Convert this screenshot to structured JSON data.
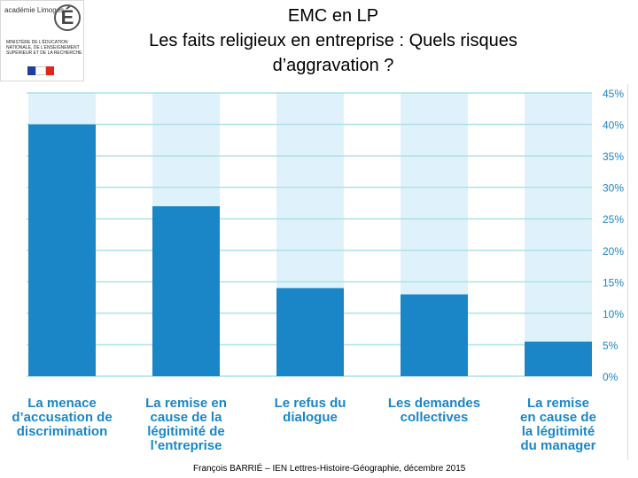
{
  "header": {
    "title_line1": "EMC en LP",
    "title_line2": "Les faits religieux en entreprise : Quels risques",
    "title_line3": "d’aggravation ?"
  },
  "logo": {
    "text": "académie Limoges",
    "ministry": "MINISTÈRE DE L’ÉDUCATION NATIONALE, DE L’ENSEIGNEMENT SUPÉRIEUR ET DE LA RECHERCHE",
    "colors": [
      "#1f3f9a",
      "#ffffff",
      "#e1261c"
    ]
  },
  "chart_data": {
    "type": "bar",
    "categories": [
      "La menace d’accusation de discrimination",
      "La remise en cause de la légitimité de l’entreprise",
      "Le refus du dialogue",
      "Les demandes collectives",
      "La remise en cause de la légitimité du manager"
    ],
    "category_lines": [
      [
        "La menace",
        "d’accusation de",
        "discrimination"
      ],
      [
        "La remise en",
        "cause de la",
        "légitimité de",
        "l’entreprise"
      ],
      [
        "Le refus du",
        "dialogue"
      ],
      [
        "Les demandes",
        "collectives"
      ],
      [
        "La remise",
        "en cause de",
        "la légitimité",
        "du manager"
      ]
    ],
    "values": [
      40,
      27,
      14,
      13,
      5.5
    ],
    "ylim": [
      0,
      45
    ],
    "ticks": [
      "0%",
      "5%",
      "10%",
      "15%",
      "20%",
      "25%",
      "30%",
      "35%",
      "40%",
      "45%"
    ],
    "tick_values": [
      0,
      5,
      10,
      15,
      20,
      25,
      30,
      35,
      40,
      45
    ],
    "grid": true,
    "colors": {
      "bar": "#1a86c8",
      "background_column": "#dff2fb",
      "gridline": "#aee0e6",
      "tick": "#1a86c8"
    }
  },
  "footer": {
    "credit": "François BARRIÉ – IEN Lettres-Histoire-Géographie, décembre 2015"
  }
}
